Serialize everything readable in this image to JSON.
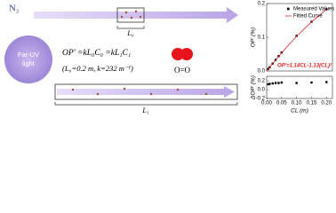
{
  "diagram": {
    "gas_label": "N₂",
    "lamp_label_line1": "Far-UV",
    "lamp_label_line2": "light",
    "equation": "OP′ =kL₀C₀ =kL₁C₁",
    "parameters": "(L₀=0.2 m, k=232 m⁻¹)",
    "molecule_label": "O=O",
    "path_short_label": "L₀",
    "path_long_label": "L₁"
  },
  "chart_data": [
    {
      "type": "scatter",
      "ylabel": "OP′ (%)",
      "annotation": "OP′=1.14CL-1.13(CL)²",
      "xlim": [
        0,
        0.22
      ],
      "ylim": [
        0,
        0.2
      ],
      "yticks": [
        {
          "value": 0,
          "label": "0.0"
        },
        0.1,
        0.2
      ],
      "legend": "upper-left",
      "series": [
        {
          "name": "Measured Values",
          "color": "#000000",
          "marker": "square",
          "x": [
            0.005,
            0.01,
            0.02,
            0.03,
            0.04,
            0.05,
            0.1,
            0.15,
            0.2
          ],
          "values": [
            0.006,
            0.011,
            0.022,
            0.033,
            0.044,
            0.055,
            0.104,
            0.146,
            0.183
          ]
        },
        {
          "name": "Fitted Curve",
          "color": "#e02020",
          "marker": "line",
          "x": [
            0,
            0.05,
            0.1,
            0.15,
            0.2
          ],
          "values": [
            0,
            0.0542,
            0.1027,
            0.1456,
            0.1828
          ]
        }
      ]
    },
    {
      "type": "scatter",
      "ylabel": "ΔOP′ (%)",
      "xlabel": "CL (m)",
      "xlim": [
        0,
        0.22
      ],
      "xticks": [
        {
          "value": 0,
          "label": "0.00"
        },
        0.05,
        {
          "value": 0.1,
          "label": "0.10"
        },
        0.15,
        {
          "value": 0.2,
          "label": "0.20"
        }
      ],
      "ylim": [
        -0.2,
        0.3
      ],
      "yticks": [
        -0.2,
        {
          "value": 0,
          "label": "0.0"
        },
        0.2
      ],
      "series": [
        {
          "color": "#000000",
          "marker": "square",
          "x": [
            0.005,
            0.01,
            0.02,
            0.03,
            0.04,
            0.05,
            0.1,
            0.15,
            0.2
          ],
          "values": [
            0.12,
            0.13,
            0.14,
            0.15,
            0.15,
            0.16,
            0.15,
            0.16,
            0.17
          ]
        }
      ]
    }
  ]
}
